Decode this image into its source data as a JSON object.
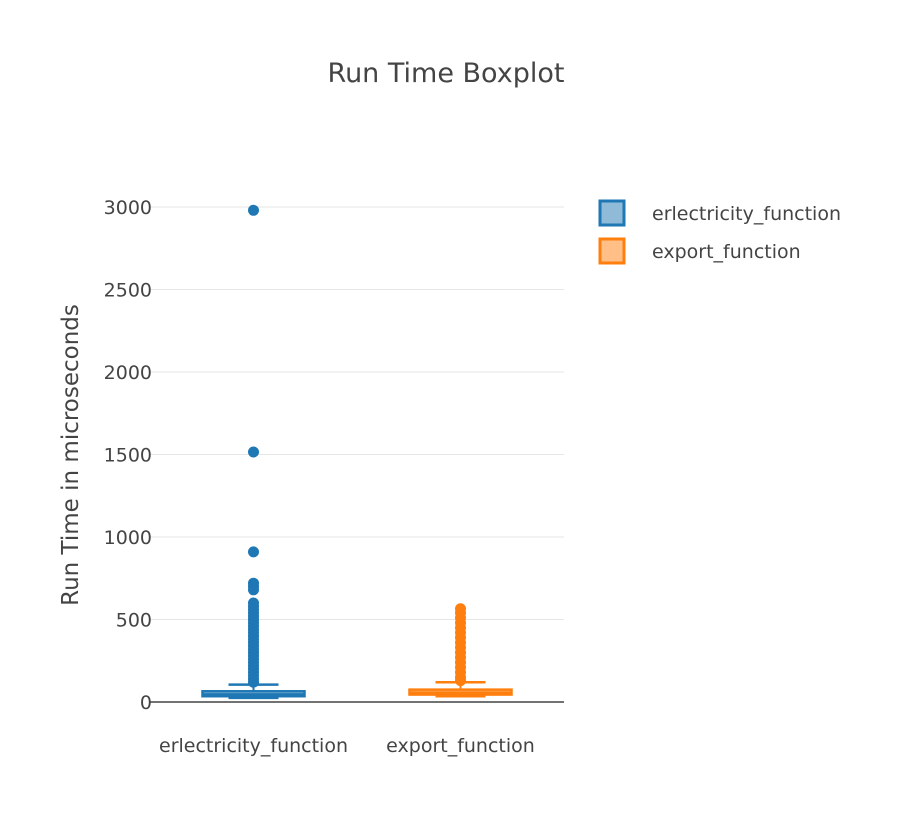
{
  "chart_data": {
    "type": "box",
    "title": "Run Time Boxplot",
    "xlabel": "",
    "ylabel": "Run Time in microseconds",
    "ylim": [
      0,
      3000
    ],
    "yticks": [
      0,
      500,
      1000,
      1500,
      2000,
      2500,
      3000
    ],
    "grid": true,
    "legend_position": "top-right",
    "categories": [
      "erlectricity_function",
      "export_function"
    ],
    "series": [
      {
        "name": "erlectricity_function",
        "color": "#1f77b4",
        "fill": "#8fbbd9",
        "q1": 35,
        "median": 45,
        "q3": 65,
        "lower_whisker": 25,
        "upper_whisker": 105,
        "outliers": [
          2980,
          1515,
          910,
          720,
          700,
          680,
          600,
          580,
          560,
          540,
          520,
          500,
          480,
          460,
          440,
          420,
          400,
          380,
          360,
          340,
          320,
          300,
          280,
          260,
          240,
          220,
          200,
          180,
          160,
          140,
          120
        ]
      },
      {
        "name": "export_function",
        "color": "#ff7f0e",
        "fill": "#ffbf86",
        "q1": 45,
        "median": 55,
        "q3": 75,
        "lower_whisker": 35,
        "upper_whisker": 120,
        "outliers": [
          565,
          540,
          510,
          480,
          450,
          420,
          390,
          360,
          330,
          300,
          270,
          240,
          210,
          180,
          150,
          130
        ]
      }
    ]
  }
}
